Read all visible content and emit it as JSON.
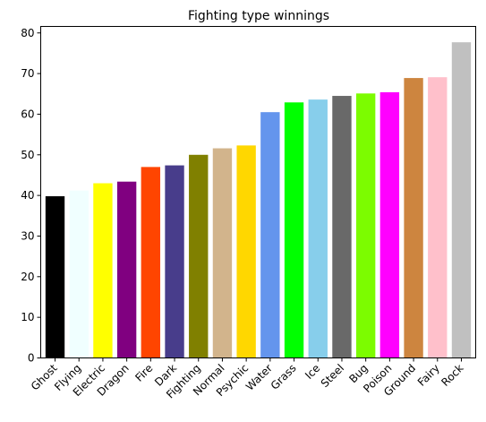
{
  "chart_data": {
    "type": "bar",
    "title": "Fighting type winnings",
    "xlabel": "",
    "ylabel": "",
    "categories": [
      "Ghost",
      "Flying",
      "Electric",
      "Dragon",
      "Fire",
      "Dark",
      "Fighting",
      "Normal",
      "Psychic",
      "Water",
      "Grass",
      "Ice",
      "Steel",
      "Bug",
      "Poison",
      "Ground",
      "Fairy",
      "Rock"
    ],
    "values": [
      39.8,
      41.2,
      43.0,
      43.4,
      47.0,
      47.4,
      50.0,
      51.6,
      52.3,
      60.5,
      62.9,
      63.6,
      64.5,
      65.1,
      65.4,
      68.9,
      69.1,
      77.7
    ],
    "colors": [
      "#000000",
      "#f0ffff",
      "#ffff00",
      "#800080",
      "#ff4500",
      "#483d8b",
      "#808000",
      "#d2b48c",
      "#ffd700",
      "#6495ed",
      "#00ff00",
      "#87ceeb",
      "#696969",
      "#7cfc00",
      "#ff00ff",
      "#cd853f",
      "#ffc0cb",
      "#c0c0c0"
    ],
    "yticks": [
      0,
      10,
      20,
      30,
      40,
      50,
      60,
      70,
      80
    ],
    "ylim": [
      0,
      81.6
    ],
    "grid": false,
    "legend": "none"
  }
}
